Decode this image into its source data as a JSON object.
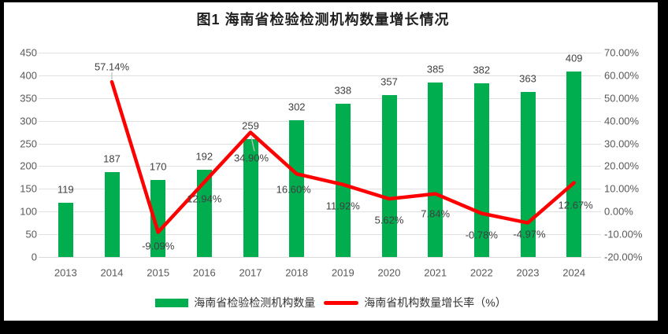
{
  "title": "图1 海南省检验检测机构数量增长情况",
  "chart_data": {
    "type": "combo-bar-line",
    "title": "图1 海南省检验检测机构数量增长情况",
    "categories": [
      "2013",
      "2014",
      "2015",
      "2016",
      "2017",
      "2018",
      "2019",
      "2020",
      "2021",
      "2022",
      "2023",
      "2024"
    ],
    "series": [
      {
        "name": "海南省检验检测机构数量",
        "type": "bar",
        "axis": "left",
        "color": "#00AE50",
        "values": [
          119,
          187,
          170,
          192,
          259,
          302,
          338,
          357,
          385,
          382,
          363,
          409
        ],
        "value_labels": [
          "119",
          "187",
          "170",
          "192",
          "259",
          "302",
          "338",
          "357",
          "385",
          "382",
          "363",
          "409"
        ]
      },
      {
        "name": "海南省机构数量增长率（%）",
        "type": "line",
        "axis": "right",
        "color": "#FF0000",
        "values": [
          null,
          57.14,
          -9.09,
          12.94,
          34.9,
          16.6,
          11.92,
          5.62,
          7.84,
          -0.78,
          -4.97,
          12.67
        ],
        "point_labels": [
          null,
          "57.14%",
          "-9.09%",
          "12.94%",
          "34.90%",
          "16.60%",
          "11.92%",
          "5.62%",
          "7.84%",
          "-0.78%",
          "-4.97%",
          "12.67%"
        ]
      }
    ],
    "left_axis": {
      "min": 0,
      "max": 450,
      "step": 50,
      "tick_labels": [
        "0",
        "50",
        "100",
        "150",
        "200",
        "250",
        "300",
        "350",
        "400",
        "450"
      ]
    },
    "right_axis": {
      "min": -20,
      "max": 70,
      "step": 10,
      "tick_labels": [
        "-20.00%",
        "-10.00%",
        "0.00%",
        "10.00%",
        "20.00%",
        "30.00%",
        "40.00%",
        "50.00%",
        "60.00%",
        "70.00%"
      ]
    },
    "grid": true,
    "legend_position": "bottom"
  },
  "legend": {
    "items": [
      {
        "label": "海南省检验检测机构数量",
        "swatch": "bar",
        "color": "#00AE50"
      },
      {
        "label": "海南省机构数量增长率（%）",
        "swatch": "line",
        "color": "#FF0000"
      }
    ]
  },
  "colors": {
    "frame": "#000000",
    "surface": "#FFFFFF",
    "grid": "#E0E0E0",
    "axis_line": "#D9D9D9",
    "axis_text": "#595959",
    "data_label": "#404040",
    "title_text": "#1F1F1F",
    "leader_line": "#BFBFBF"
  }
}
